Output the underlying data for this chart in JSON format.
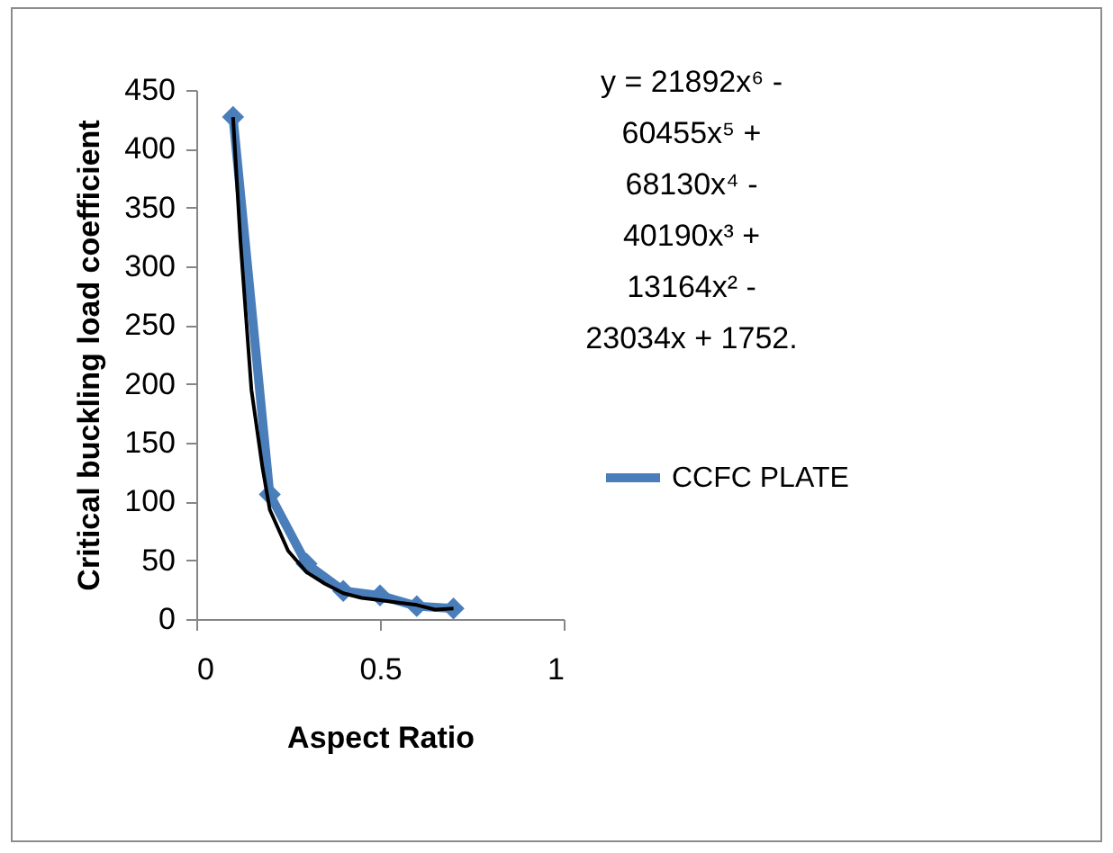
{
  "chart_data": {
    "type": "line",
    "xlabel": "Aspect Ratio",
    "ylabel": "Critical buckling load coefficient",
    "x": [
      0.1,
      0.2,
      0.3,
      0.4,
      0.5,
      0.6,
      0.7
    ],
    "series": [
      {
        "name": "CCFC PLATE",
        "color": "#4a7ebb",
        "marker": "diamond",
        "values": [
          427,
          106,
          47,
          24,
          20,
          11,
          9
        ]
      },
      {
        "type": "line",
        "color": "#000000",
        "marker": "none",
        "x": [
          0.1,
          0.12,
          0.15,
          0.18,
          0.2,
          0.25,
          0.3,
          0.35,
          0.4,
          0.45,
          0.5,
          0.55,
          0.6,
          0.65,
          0.7
        ],
        "values": [
          427,
          322,
          195,
          129,
          93,
          58,
          40,
          30,
          22,
          18,
          16,
          14,
          12,
          8,
          9
        ]
      }
    ],
    "annotations": [
      "y = 21892x⁶ - 60455x⁵ + 68130x⁴ - 40190x³ + 13164x² - 23034x + 1752."
    ],
    "xlim": [
      0,
      1
    ],
    "xticks": [
      0,
      0.5,
      1
    ],
    "ylim": [
      0,
      450
    ],
    "yticks": [
      0,
      50,
      100,
      150,
      200,
      250,
      300,
      350,
      400,
      450
    ],
    "grid": false,
    "legend": "right"
  }
}
